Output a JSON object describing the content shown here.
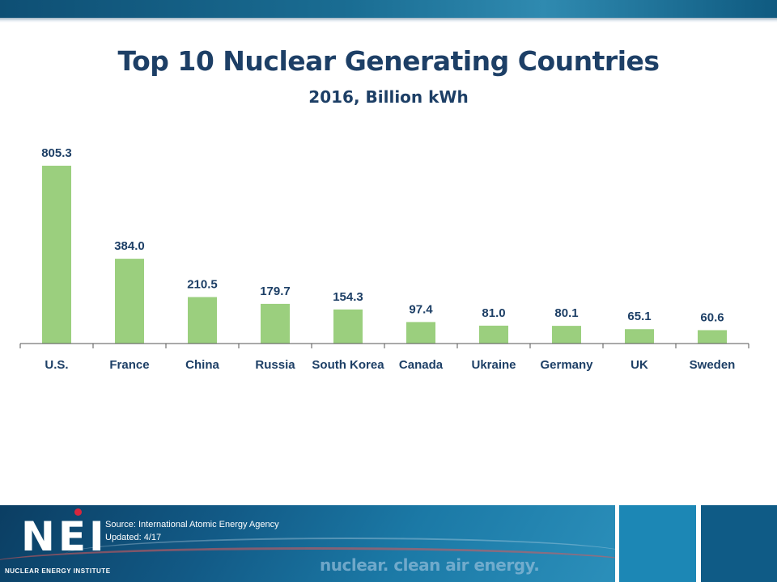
{
  "chart_data": {
    "type": "bar",
    "title": "Top 10 Nuclear Generating Countries",
    "subtitle": "2016, Billion kWh",
    "categories": [
      "U.S.",
      "France",
      "China",
      "Russia",
      "South Korea",
      "Canada",
      "Ukraine",
      "Germany",
      "UK",
      "Sweden"
    ],
    "values": [
      805.3,
      384.0,
      210.5,
      179.7,
      154.3,
      97.4,
      81.0,
      80.1,
      65.1,
      60.6
    ],
    "value_labels": [
      "805.3",
      "384.0",
      "210.5",
      "179.7",
      "154.3",
      "97.4",
      "81.0",
      "80.1",
      "65.1",
      "60.6"
    ],
    "ylim": [
      0,
      805.3
    ],
    "grid": false,
    "legend": "none",
    "bar_color": "#9bcf7e"
  },
  "footer": {
    "logo": "NEI",
    "logo_sub": "NUCLEAR ENERGY INSTITUTE",
    "source": "Source:  International Atomic Energy Agency",
    "updated": "Updated:  4/17",
    "tagline": "nuclear. clean air energy."
  }
}
